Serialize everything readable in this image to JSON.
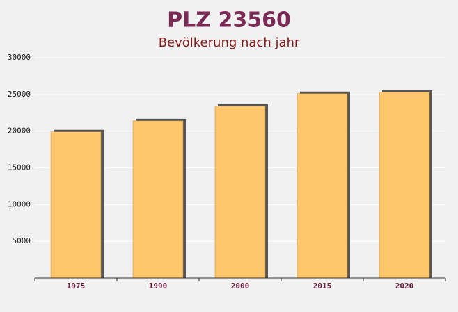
{
  "chart_data": {
    "type": "bar",
    "title": "PLZ 23560",
    "subtitle": "Bevölkerung nach jahr",
    "categories": [
      "1975",
      "1990",
      "2000",
      "2015",
      "2020"
    ],
    "values": [
      19900,
      21400,
      23400,
      25100,
      25300
    ],
    "color": "#fdc66a",
    "ylim": [
      0,
      30000
    ],
    "yticks": [
      5000,
      10000,
      15000,
      20000,
      25000,
      30000
    ],
    "grid": true
  }
}
